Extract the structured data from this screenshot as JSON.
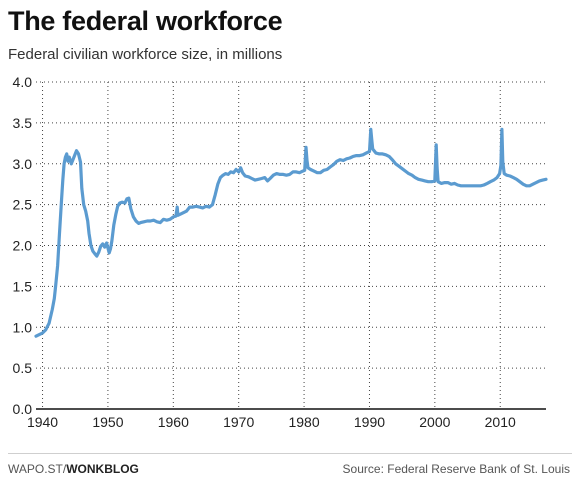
{
  "header": {
    "title": "The federal workforce",
    "subtitle": "Federal civilian workforce size, in millions"
  },
  "footer": {
    "credit_prefix": "WAPO.ST/",
    "credit_bold": "WONKBLOG",
    "source": "Source: Federal Reserve Bank of St. Louis"
  },
  "colors": {
    "line": "#5b9bd0",
    "grid": "#444444",
    "axis": "#111111"
  },
  "chart_data": {
    "type": "line",
    "title": "The federal workforce",
    "subtitle": "Federal civilian workforce size, in millions",
    "xlabel": "",
    "ylabel": "",
    "xlim": [
      1939,
      2017
    ],
    "ylim": [
      0,
      4.0
    ],
    "x_ticks": [
      1940,
      1950,
      1960,
      1970,
      1980,
      1990,
      2000,
      2010
    ],
    "y_ticks": [
      0,
      0.5,
      1.0,
      1.5,
      2.0,
      2.5,
      3.0,
      3.5,
      4.0
    ],
    "y_tick_labels": [
      "0.0",
      "0.5",
      "1.0",
      "1.5",
      "2.0",
      "2.5",
      "3.0",
      "3.5",
      "4.0"
    ],
    "grid": "dotted",
    "series": [
      {
        "values": [
          [
            1939.0,
            0.89
          ],
          [
            1939.5,
            0.91
          ],
          [
            1940.0,
            0.93
          ],
          [
            1940.5,
            0.97
          ],
          [
            1941.0,
            1.05
          ],
          [
            1941.5,
            1.22
          ],
          [
            1941.8,
            1.35
          ],
          [
            1942.0,
            1.5
          ],
          [
            1942.3,
            1.75
          ],
          [
            1942.6,
            2.15
          ],
          [
            1942.9,
            2.55
          ],
          [
            1943.1,
            2.8
          ],
          [
            1943.3,
            3.0
          ],
          [
            1943.5,
            3.08
          ],
          [
            1943.7,
            3.12
          ],
          [
            1943.9,
            3.03
          ],
          [
            1944.1,
            3.08
          ],
          [
            1944.4,
            3.0
          ],
          [
            1944.7,
            3.06
          ],
          [
            1945.0,
            3.12
          ],
          [
            1945.2,
            3.16
          ],
          [
            1945.5,
            3.12
          ],
          [
            1945.8,
            3.02
          ],
          [
            1946.0,
            2.7
          ],
          [
            1946.3,
            2.5
          ],
          [
            1946.6,
            2.42
          ],
          [
            1946.9,
            2.3
          ],
          [
            1947.1,
            2.15
          ],
          [
            1947.4,
            2.0
          ],
          [
            1947.7,
            1.93
          ],
          [
            1948.0,
            1.9
          ],
          [
            1948.3,
            1.87
          ],
          [
            1948.6,
            1.92
          ],
          [
            1948.9,
            1.99
          ],
          [
            1949.2,
            2.02
          ],
          [
            1949.5,
            1.98
          ],
          [
            1949.8,
            2.03
          ],
          [
            1950.0,
            1.97
          ],
          [
            1950.2,
            1.91
          ],
          [
            1950.4,
            1.96
          ],
          [
            1950.6,
            2.05
          ],
          [
            1950.9,
            2.25
          ],
          [
            1951.2,
            2.38
          ],
          [
            1951.5,
            2.48
          ],
          [
            1951.8,
            2.52
          ],
          [
            1952.2,
            2.53
          ],
          [
            1952.6,
            2.52
          ],
          [
            1952.9,
            2.57
          ],
          [
            1953.2,
            2.58
          ],
          [
            1953.5,
            2.45
          ],
          [
            1953.9,
            2.35
          ],
          [
            1954.3,
            2.3
          ],
          [
            1954.7,
            2.27
          ],
          [
            1955.0,
            2.28
          ],
          [
            1955.5,
            2.29
          ],
          [
            1956.0,
            2.3
          ],
          [
            1956.5,
            2.3
          ],
          [
            1957.0,
            2.31
          ],
          [
            1957.5,
            2.29
          ],
          [
            1958.0,
            2.28
          ],
          [
            1958.5,
            2.32
          ],
          [
            1959.0,
            2.31
          ],
          [
            1959.5,
            2.32
          ],
          [
            1960.0,
            2.35
          ],
          [
            1960.4,
            2.36
          ],
          [
            1960.6,
            2.47
          ],
          [
            1960.7,
            2.37
          ],
          [
            1961.0,
            2.38
          ],
          [
            1961.5,
            2.4
          ],
          [
            1962.0,
            2.42
          ],
          [
            1962.5,
            2.47
          ],
          [
            1963.0,
            2.47
          ],
          [
            1963.5,
            2.48
          ],
          [
            1964.0,
            2.47
          ],
          [
            1964.5,
            2.46
          ],
          [
            1965.0,
            2.48
          ],
          [
            1965.5,
            2.47
          ],
          [
            1966.0,
            2.5
          ],
          [
            1966.4,
            2.62
          ],
          [
            1966.8,
            2.75
          ],
          [
            1967.2,
            2.83
          ],
          [
            1967.6,
            2.86
          ],
          [
            1968.0,
            2.88
          ],
          [
            1968.4,
            2.87
          ],
          [
            1968.8,
            2.9
          ],
          [
            1969.2,
            2.89
          ],
          [
            1969.6,
            2.93
          ],
          [
            1970.0,
            2.9
          ],
          [
            1970.3,
            2.95
          ],
          [
            1970.6,
            2.89
          ],
          [
            1971.0,
            2.85
          ],
          [
            1971.5,
            2.84
          ],
          [
            1972.0,
            2.82
          ],
          [
            1972.5,
            2.8
          ],
          [
            1973.0,
            2.81
          ],
          [
            1973.5,
            2.82
          ],
          [
            1974.0,
            2.83
          ],
          [
            1974.4,
            2.79
          ],
          [
            1974.8,
            2.82
          ],
          [
            1975.3,
            2.86
          ],
          [
            1975.8,
            2.88
          ],
          [
            1976.3,
            2.87
          ],
          [
            1976.8,
            2.87
          ],
          [
            1977.3,
            2.86
          ],
          [
            1977.8,
            2.87
          ],
          [
            1978.3,
            2.9
          ],
          [
            1978.8,
            2.9
          ],
          [
            1979.3,
            2.89
          ],
          [
            1979.8,
            2.91
          ],
          [
            1980.1,
            2.92
          ],
          [
            1980.3,
            3.2
          ],
          [
            1980.45,
            3.04
          ],
          [
            1980.6,
            2.95
          ],
          [
            1981.0,
            2.93
          ],
          [
            1981.5,
            2.91
          ],
          [
            1982.0,
            2.89
          ],
          [
            1982.5,
            2.89
          ],
          [
            1983.0,
            2.92
          ],
          [
            1983.5,
            2.93
          ],
          [
            1984.0,
            2.96
          ],
          [
            1984.5,
            2.99
          ],
          [
            1985.0,
            3.03
          ],
          [
            1985.5,
            3.05
          ],
          [
            1986.0,
            3.04
          ],
          [
            1986.5,
            3.06
          ],
          [
            1987.0,
            3.07
          ],
          [
            1987.5,
            3.09
          ],
          [
            1988.0,
            3.1
          ],
          [
            1988.5,
            3.1
          ],
          [
            1989.0,
            3.11
          ],
          [
            1989.5,
            3.13
          ],
          [
            1990.0,
            3.15
          ],
          [
            1990.2,
            3.42
          ],
          [
            1990.35,
            3.3
          ],
          [
            1990.5,
            3.18
          ],
          [
            1991.0,
            3.13
          ],
          [
            1991.5,
            3.12
          ],
          [
            1992.0,
            3.12
          ],
          [
            1992.5,
            3.11
          ],
          [
            1993.0,
            3.09
          ],
          [
            1993.5,
            3.05
          ],
          [
            1994.0,
            3.0
          ],
          [
            1994.5,
            2.97
          ],
          [
            1995.0,
            2.94
          ],
          [
            1995.5,
            2.91
          ],
          [
            1996.0,
            2.88
          ],
          [
            1996.5,
            2.86
          ],
          [
            1997.0,
            2.83
          ],
          [
            1997.5,
            2.81
          ],
          [
            1998.0,
            2.8
          ],
          [
            1998.5,
            2.79
          ],
          [
            1999.0,
            2.78
          ],
          [
            1999.5,
            2.78
          ],
          [
            2000.0,
            2.79
          ],
          [
            2000.2,
            3.23
          ],
          [
            2000.35,
            2.95
          ],
          [
            2000.5,
            2.78
          ],
          [
            2001.0,
            2.76
          ],
          [
            2001.5,
            2.77
          ],
          [
            2002.0,
            2.77
          ],
          [
            2002.5,
            2.75
          ],
          [
            2003.0,
            2.76
          ],
          [
            2003.5,
            2.74
          ],
          [
            2004.0,
            2.73
          ],
          [
            2004.5,
            2.73
          ],
          [
            2005.0,
            2.73
          ],
          [
            2005.5,
            2.73
          ],
          [
            2006.0,
            2.73
          ],
          [
            2006.5,
            2.73
          ],
          [
            2007.0,
            2.73
          ],
          [
            2007.5,
            2.74
          ],
          [
            2008.0,
            2.76
          ],
          [
            2008.5,
            2.78
          ],
          [
            2009.0,
            2.8
          ],
          [
            2009.5,
            2.83
          ],
          [
            2009.9,
            2.88
          ],
          [
            2010.1,
            2.98
          ],
          [
            2010.25,
            3.42
          ],
          [
            2010.4,
            3.02
          ],
          [
            2010.6,
            2.88
          ],
          [
            2011.0,
            2.86
          ],
          [
            2011.5,
            2.85
          ],
          [
            2012.0,
            2.83
          ],
          [
            2012.5,
            2.81
          ],
          [
            2013.0,
            2.78
          ],
          [
            2013.5,
            2.75
          ],
          [
            2014.0,
            2.73
          ],
          [
            2014.5,
            2.73
          ],
          [
            2015.0,
            2.75
          ],
          [
            2015.5,
            2.77
          ],
          [
            2016.0,
            2.79
          ],
          [
            2016.5,
            2.8
          ],
          [
            2017.0,
            2.81
          ]
        ]
      }
    ]
  }
}
